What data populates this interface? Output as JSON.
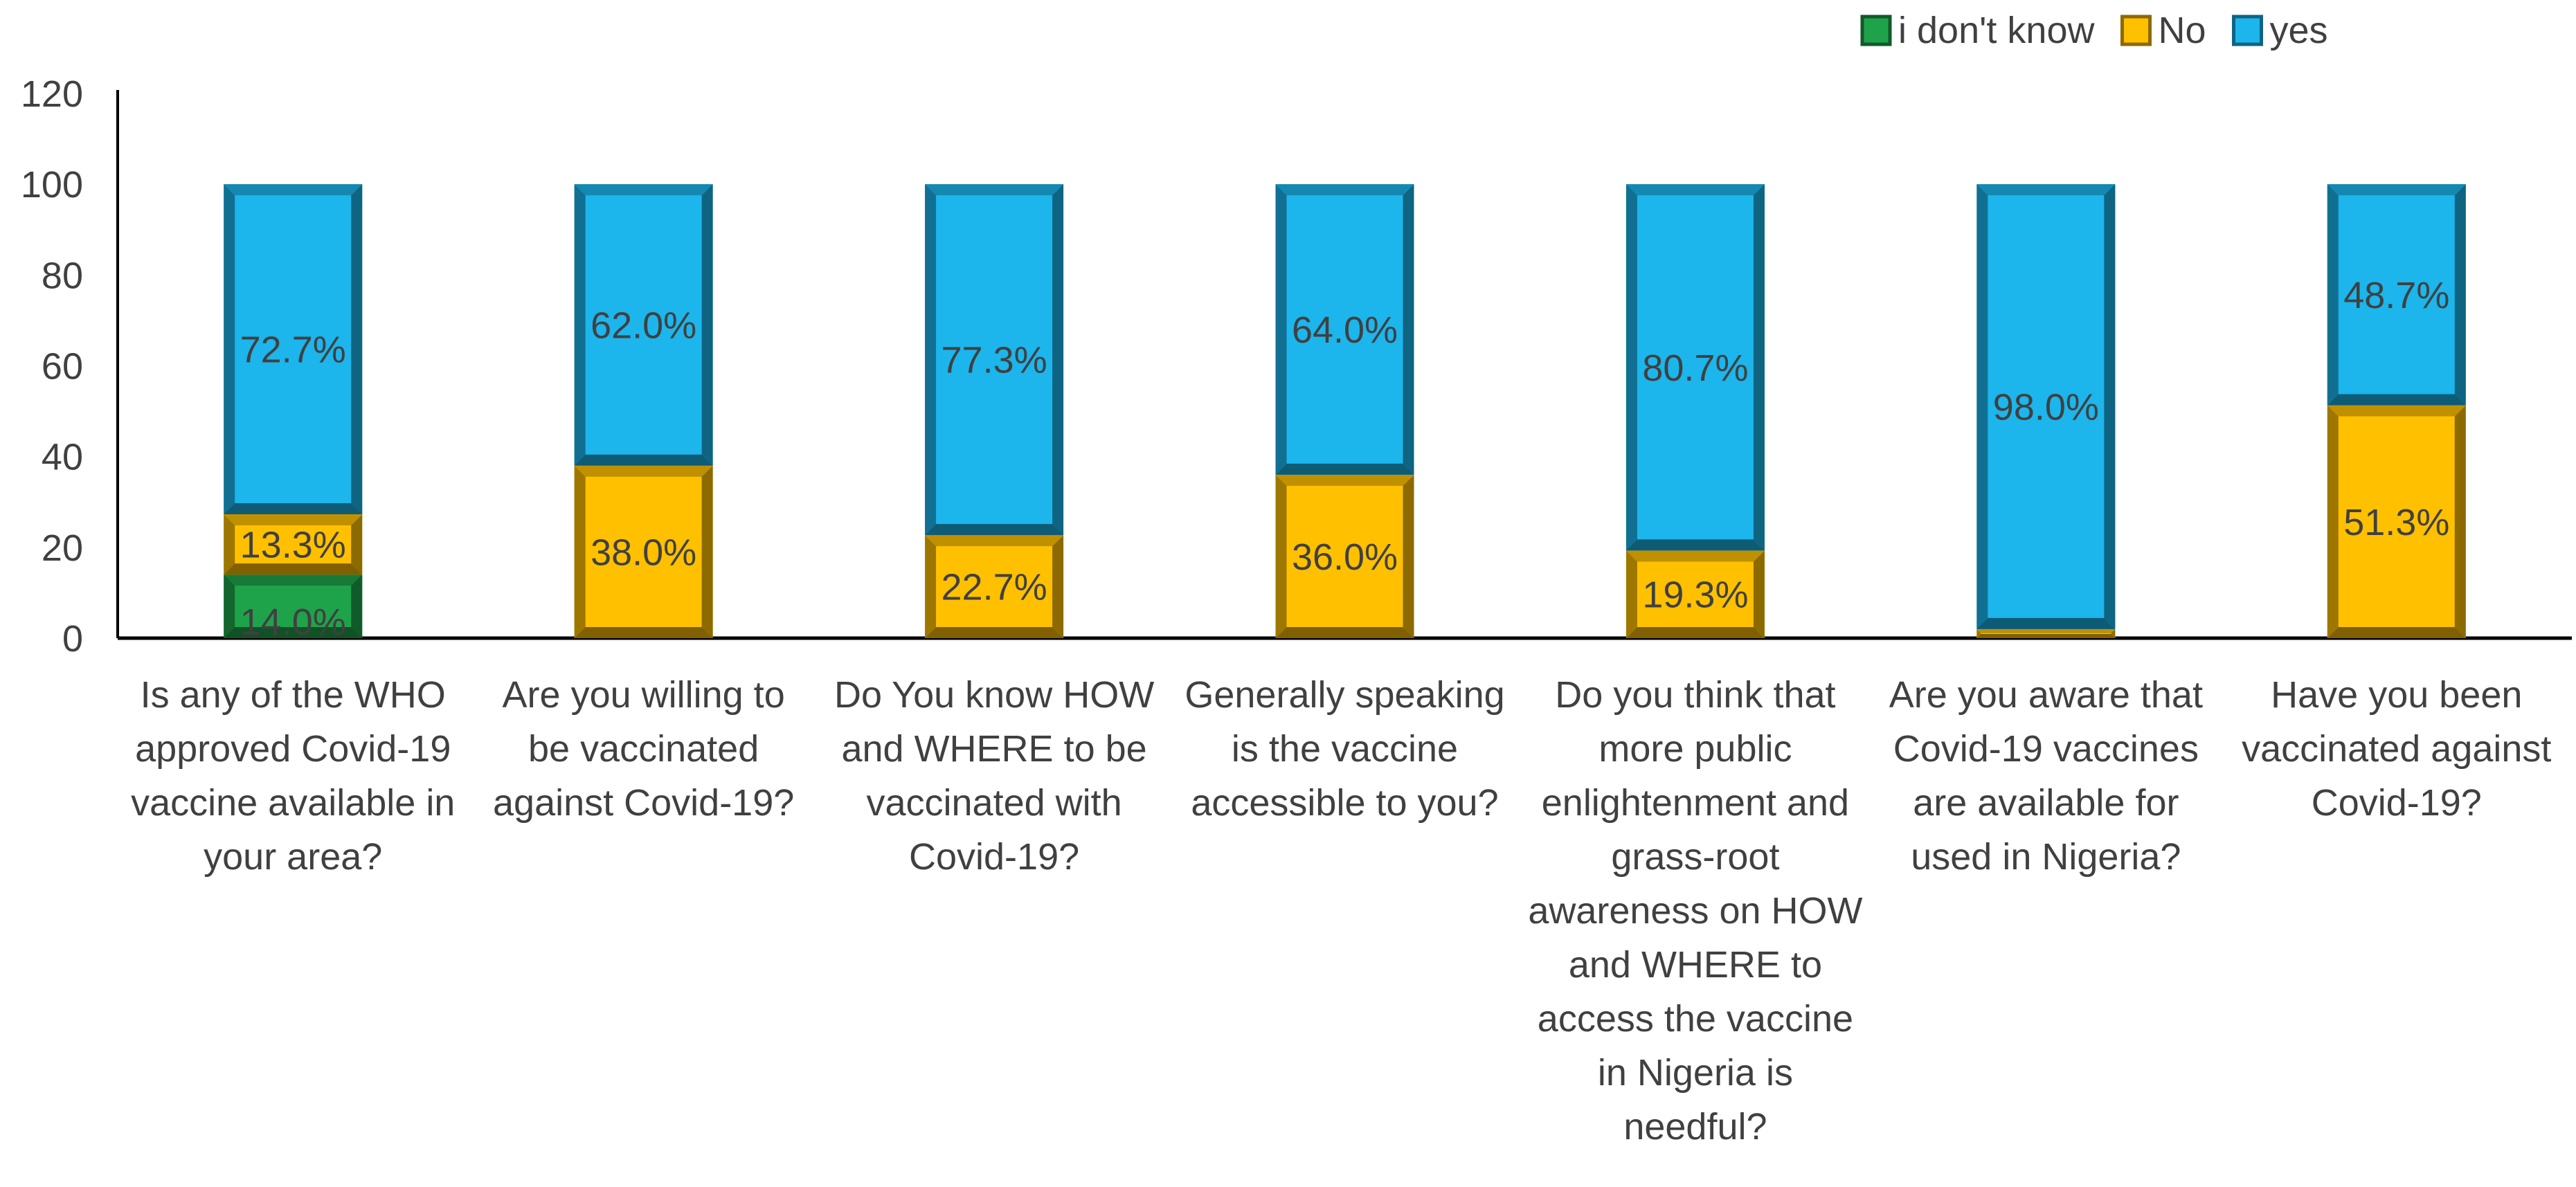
{
  "chart_data": {
    "type": "bar",
    "stacked": true,
    "title": "",
    "xlabel": "",
    "ylabel": "",
    "ylim": [
      0,
      120
    ],
    "yticks": [
      0,
      20,
      40,
      60,
      80,
      100,
      120
    ],
    "grid": false,
    "legend_position": "top-right",
    "categories": [
      [
        "Is any of the WHO",
        "approved Covid-19",
        "vaccine available in",
        "your area?"
      ],
      [
        "Are you willing to",
        "be vaccinated",
        "against Covid-19?"
      ],
      [
        "Do You  know HOW",
        "and WHERE to be",
        "vaccinated with",
        "Covid-19?"
      ],
      [
        "Generally speaking",
        "is the vaccine",
        "accessible to you?"
      ],
      [
        "Do you think that",
        "more public",
        "enlightenment and",
        "grass-root",
        "awareness on HOW",
        "and WHERE to",
        "access the vaccine",
        "in Nigeria is",
        "needful?"
      ],
      [
        "Are you aware that",
        "Covid-19 vaccines",
        "are available for",
        "used in Nigeria?"
      ],
      [
        "Have you been",
        "vaccinated against",
        "Covid-19?"
      ]
    ],
    "series": [
      {
        "name": "i don't know",
        "color": "#1FA34A",
        "values": [
          14.0,
          0,
          0,
          0,
          0,
          0,
          0
        ],
        "labels": [
          "14.0%",
          "",
          "",
          "",
          "",
          "",
          ""
        ]
      },
      {
        "name": "No",
        "color": "#FFC000",
        "values": [
          13.3,
          38.0,
          22.7,
          36.0,
          19.3,
          2.0,
          51.3
        ],
        "labels": [
          "13.3%",
          "38.0%",
          "22.7%",
          "36.0%",
          "19.3%",
          "",
          "51.3%"
        ]
      },
      {
        "name": "yes",
        "color": "#1CB5EC",
        "values": [
          72.7,
          62.0,
          77.3,
          64.0,
          80.7,
          98.0,
          48.7
        ],
        "labels": [
          "72.7%",
          "62.0%",
          "77.3%",
          "64.0%",
          "80.7%",
          "98.0%",
          "48.7%"
        ]
      }
    ]
  }
}
